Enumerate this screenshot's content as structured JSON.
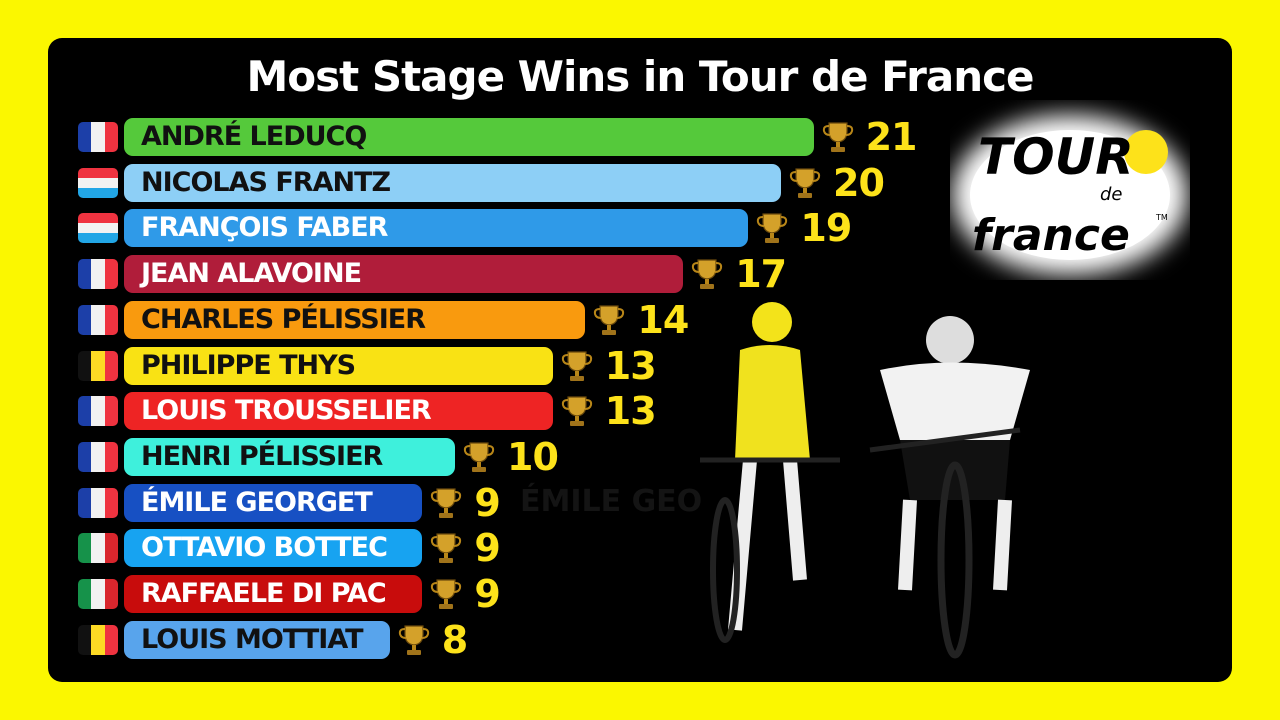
{
  "chart_data": {
    "type": "bar",
    "orientation": "horizontal",
    "title": "Most Stage Wins in Tour de France",
    "rows": [
      {
        "name": "ANDRÉ LEDUCQ",
        "value": 21,
        "country": "France",
        "color": "#55c93b",
        "text_color": "#111111"
      },
      {
        "name": "NICOLAS FRANTZ",
        "value": 20,
        "country": "Luxembourg",
        "color": "#8dcff6",
        "text_color": "#111111"
      },
      {
        "name": "FRANÇOIS FABER",
        "value": 19,
        "country": "Luxembourg",
        "color": "#2f9ae8",
        "text_color": "#ffffff"
      },
      {
        "name": "JEAN ALAVOINE",
        "value": 17,
        "country": "France",
        "color": "#b01d3a",
        "text_color": "#ffffff"
      },
      {
        "name": "CHARLES PÉLISSIER",
        "value": 14,
        "country": "France",
        "color": "#f99a0e",
        "text_color": "#111111"
      },
      {
        "name": "PHILIPPE THYS",
        "value": 13,
        "country": "Belgium",
        "color": "#f9e214",
        "text_color": "#111111"
      },
      {
        "name": "LOUIS TROUSSELIER",
        "value": 13,
        "country": "France",
        "color": "#ee2424",
        "text_color": "#ffffff"
      },
      {
        "name": "HENRI PÉLISSIER",
        "value": 10,
        "country": "France",
        "color": "#3ef0dc",
        "text_color": "#111111"
      },
      {
        "name": "ÉMILE GEORGET",
        "value": 9,
        "country": "France",
        "color": "#1750c3",
        "text_color": "#ffffff"
      },
      {
        "name": "OTTAVIO BOTTEC",
        "value": 9,
        "country": "Italy",
        "color": "#17a3f1",
        "text_color": "#ffffff"
      },
      {
        "name": "RAFFAELE DI PAC",
        "value": 9,
        "country": "Italy",
        "color": "#c80c0c",
        "text_color": "#ffffff"
      },
      {
        "name": "LOUIS MOTTIAT",
        "value": 8,
        "country": "Belgium",
        "color": "#58a4ec",
        "text_color": "#111111"
      }
    ],
    "value_color": "#fde21a"
  },
  "ghost_label": "ÉMILE GEO",
  "logo": {
    "text": "TOUR de france",
    "mark": "TM"
  },
  "flags": {
    "France": {
      "dir": "v",
      "colors": [
        "#1c3fa8",
        "#f2f2f2",
        "#ef3340"
      ]
    },
    "Luxembourg": {
      "dir": "h",
      "colors": [
        "#ef3340",
        "#f2f2f2",
        "#22a6e6"
      ]
    },
    "Belgium": {
      "dir": "v",
      "colors": [
        "#111111",
        "#fdda24",
        "#ef3340"
      ]
    },
    "Italy": {
      "dir": "v",
      "colors": [
        "#16924a",
        "#f2f2f2",
        "#d9262d"
      ]
    }
  }
}
